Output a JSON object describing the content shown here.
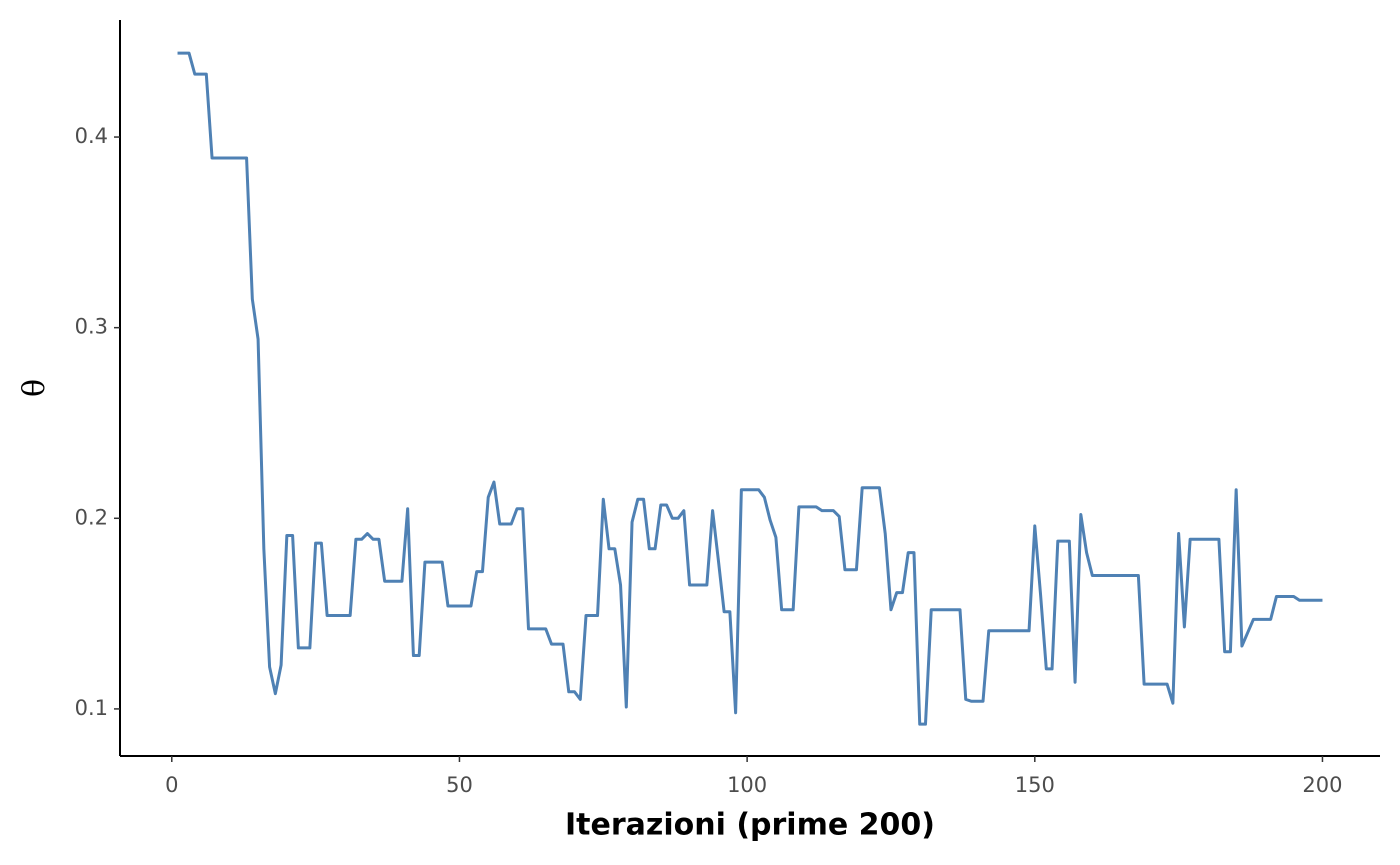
{
  "chart_data": {
    "type": "line",
    "x_label": "Iterazioni (prime 200)",
    "y_label": "θ",
    "color": "#4f81b4",
    "x": [
      1,
      2,
      3,
      4,
      5,
      6,
      7,
      8,
      9,
      10,
      11,
      12,
      13,
      14,
      15,
      16,
      17,
      18,
      19,
      20,
      21,
      22,
      23,
      24,
      25,
      26,
      27,
      28,
      29,
      30,
      31,
      32,
      33,
      34,
      35,
      36,
      37,
      38,
      39,
      40,
      41,
      42,
      43,
      44,
      45,
      46,
      47,
      48,
      49,
      50,
      51,
      52,
      53,
      54,
      55,
      56,
      57,
      58,
      59,
      60,
      61,
      62,
      63,
      64,
      65,
      66,
      67,
      68,
      69,
      70,
      71,
      72,
      73,
      74,
      75,
      76,
      77,
      78,
      79,
      80,
      81,
      82,
      83,
      84,
      85,
      86,
      87,
      88,
      89,
      90,
      91,
      92,
      93,
      94,
      95,
      96,
      97,
      98,
      99,
      100,
      101,
      102,
      103,
      104,
      105,
      106,
      107,
      108,
      109,
      110,
      111,
      112,
      113,
      114,
      115,
      116,
      117,
      118,
      119,
      120,
      121,
      122,
      123,
      124,
      125,
      126,
      127,
      128,
      129,
      130,
      131,
      132,
      133,
      134,
      135,
      136,
      137,
      138,
      139,
      140,
      141,
      142,
      143,
      144,
      145,
      146,
      147,
      148,
      149,
      150,
      151,
      152,
      153,
      154,
      155,
      156,
      157,
      158,
      159,
      160,
      161,
      162,
      163,
      164,
      165,
      166,
      167,
      168,
      169,
      170,
      171,
      172,
      173,
      174,
      175,
      176,
      177,
      178,
      179,
      180,
      181,
      182,
      183,
      184,
      185,
      186,
      187,
      188,
      189,
      190,
      191,
      192,
      193,
      194,
      195,
      196,
      197,
      198,
      199,
      200
    ],
    "values": [
      0.444,
      0.444,
      0.444,
      0.433,
      0.433,
      0.433,
      0.389,
      0.389,
      0.389,
      0.389,
      0.389,
      0.389,
      0.389,
      0.315,
      0.294,
      0.184,
      0.122,
      0.108,
      0.123,
      0.191,
      0.191,
      0.132,
      0.132,
      0.132,
      0.187,
      0.187,
      0.149,
      0.149,
      0.149,
      0.149,
      0.149,
      0.189,
      0.189,
      0.192,
      0.189,
      0.189,
      0.167,
      0.167,
      0.167,
      0.167,
      0.205,
      0.128,
      0.128,
      0.177,
      0.177,
      0.177,
      0.177,
      0.154,
      0.154,
      0.154,
      0.154,
      0.154,
      0.172,
      0.172,
      0.211,
      0.219,
      0.197,
      0.197,
      0.197,
      0.205,
      0.205,
      0.142,
      0.142,
      0.142,
      0.142,
      0.134,
      0.134,
      0.134,
      0.109,
      0.109,
      0.105,
      0.149,
      0.149,
      0.149,
      0.21,
      0.184,
      0.184,
      0.165,
      0.101,
      0.198,
      0.21,
      0.21,
      0.184,
      0.184,
      0.207,
      0.207,
      0.2,
      0.2,
      0.204,
      0.165,
      0.165,
      0.165,
      0.165,
      0.204,
      0.178,
      0.151,
      0.151,
      0.098,
      0.215,
      0.215,
      0.215,
      0.215,
      0.211,
      0.199,
      0.19,
      0.152,
      0.152,
      0.152,
      0.206,
      0.206,
      0.206,
      0.206,
      0.204,
      0.204,
      0.204,
      0.201,
      0.173,
      0.173,
      0.173,
      0.216,
      0.216,
      0.216,
      0.216,
      0.192,
      0.152,
      0.161,
      0.161,
      0.182,
      0.182,
      0.092,
      0.092,
      0.152,
      0.152,
      0.152,
      0.152,
      0.152,
      0.152,
      0.105,
      0.104,
      0.104,
      0.104,
      0.141,
      0.141,
      0.141,
      0.141,
      0.141,
      0.141,
      0.141,
      0.141,
      0.196,
      0.16,
      0.121,
      0.121,
      0.188,
      0.188,
      0.188,
      0.114,
      0.202,
      0.182,
      0.17,
      0.17,
      0.17,
      0.17,
      0.17,
      0.17,
      0.17,
      0.17,
      0.17,
      0.113,
      0.113,
      0.113,
      0.113,
      0.113,
      0.103,
      0.192,
      0.143,
      0.189,
      0.189,
      0.189,
      0.189,
      0.189,
      0.189,
      0.13,
      0.13,
      0.215,
      0.133,
      0.14,
      0.147,
      0.147,
      0.147,
      0.147,
      0.159,
      0.159,
      0.159,
      0.159,
      0.157,
      0.157,
      0.157,
      0.157,
      0.157
    ],
    "xlim": [
      -9,
      210
    ],
    "ylim": [
      0.0753,
      0.4614
    ],
    "xticks": [
      0,
      50,
      100,
      150,
      200
    ],
    "yticks": [
      0.1,
      0.2,
      0.3,
      0.4
    ]
  }
}
